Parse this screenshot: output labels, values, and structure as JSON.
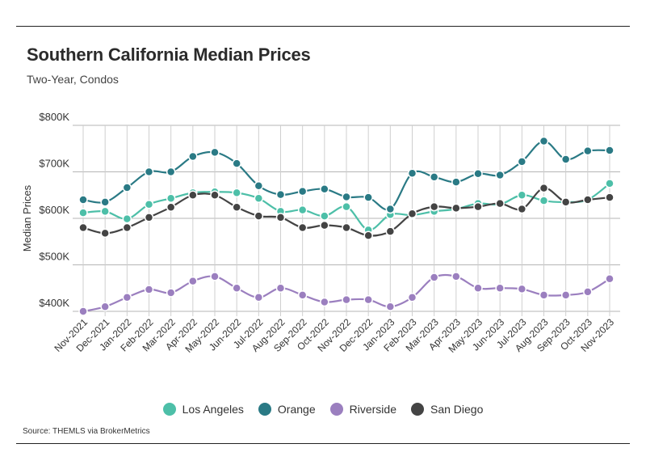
{
  "title": "Southern California Median Prices",
  "subtitle": "Two-Year, Condos",
  "source": "Source:  THEMLS via BrokerMetrics",
  "chart_data": {
    "type": "line",
    "ylabel": "Median Prices",
    "ylim": [
      400000,
      800000
    ],
    "yticks": [
      400000,
      500000,
      600000,
      700000,
      800000
    ],
    "ytick_labels": [
      "$400K",
      "$500K",
      "$600K",
      "$700K",
      "$800K"
    ],
    "grid": true,
    "legend_position": "bottom",
    "categories": [
      "Nov-2021",
      "Dec-2021",
      "Jan-2022",
      "Feb-2022",
      "Mar-2022",
      "Apr-2022",
      "May-2022",
      "Jun-2022",
      "Jul-2022",
      "Aug-2022",
      "Sep-2022",
      "Oct-2022",
      "Nov-2022",
      "Dec-2022",
      "Jan-2023",
      "Feb-2023",
      "Mar-2023",
      "Apr-2023",
      "May-2023",
      "Jun-2023",
      "Jul-2023",
      "Aug-2023",
      "Sep-2023",
      "Oct-2023",
      "Nov-2023"
    ],
    "series": [
      {
        "name": "Los Angeles",
        "color": "#4dbfa8",
        "values": [
          612000,
          615000,
          599000,
          630000,
          643000,
          655000,
          657000,
          655000,
          643000,
          615000,
          618000,
          605000,
          625000,
          575000,
          608000,
          607000,
          615000,
          620000,
          632000,
          630000,
          650000,
          638000,
          635000,
          640000,
          675000
        ]
      },
      {
        "name": "Orange",
        "color": "#2a7a85",
        "values": [
          640000,
          635000,
          666000,
          700000,
          700000,
          733000,
          742000,
          718000,
          670000,
          651000,
          658000,
          663000,
          646000,
          645000,
          620000,
          697000,
          689000,
          678000,
          696000,
          693000,
          722000,
          766000,
          727000,
          745000,
          746000
        ]
      },
      {
        "name": "Riverside",
        "color": "#9b7fbf",
        "values": [
          400000,
          410000,
          430000,
          447000,
          440000,
          465000,
          475000,
          450000,
          430000,
          450000,
          435000,
          420000,
          425000,
          425000,
          410000,
          430000,
          473000,
          475000,
          450000,
          450000,
          448000,
          435000,
          435000,
          442000,
          470000
        ]
      },
      {
        "name": "San Diego",
        "color": "#444444",
        "values": [
          580000,
          568000,
          580000,
          602000,
          624000,
          650000,
          650000,
          624000,
          605000,
          602000,
          580000,
          585000,
          580000,
          563000,
          572000,
          610000,
          625000,
          622000,
          625000,
          632000,
          620000,
          665000,
          635000,
          640000,
          645000
        ]
      }
    ]
  }
}
